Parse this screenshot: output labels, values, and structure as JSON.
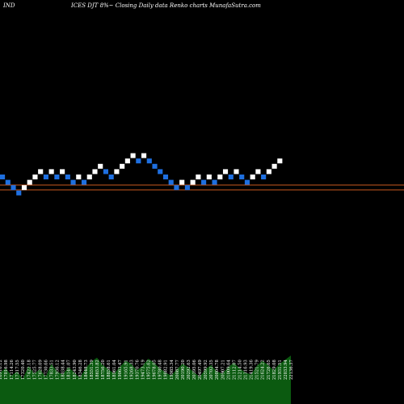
{
  "header": {
    "left": "IND",
    "center": "ICES DJT 8%~  Closing Daily data  Renko  charts MunafaSutra.com"
  },
  "chart_data": {
    "type": "renko",
    "title": "ICES DJT 8%~  Closing Daily data  Renko  charts MunafaSutra.com",
    "brick_size": 1,
    "colors": {
      "up": "#ffffff",
      "down": "#1e6fe0",
      "reference_line": "#c8581e",
      "volume": "#0b5a10",
      "background": "#000000"
    },
    "bricks": [
      {
        "dir": "down",
        "level": 0
      },
      {
        "dir": "down",
        "level": -1
      },
      {
        "dir": "down",
        "level": -2
      },
      {
        "dir": "down",
        "level": -3
      },
      {
        "dir": "up",
        "level": -2
      },
      {
        "dir": "up",
        "level": -1
      },
      {
        "dir": "up",
        "level": 0
      },
      {
        "dir": "up",
        "level": 1
      },
      {
        "dir": "down",
        "level": 0
      },
      {
        "dir": "up",
        "level": 1
      },
      {
        "dir": "down",
        "level": 0
      },
      {
        "dir": "up",
        "level": 1
      },
      {
        "dir": "down",
        "level": 0
      },
      {
        "dir": "down",
        "level": -1
      },
      {
        "dir": "up",
        "level": 0
      },
      {
        "dir": "down",
        "level": -1
      },
      {
        "dir": "up",
        "level": 0
      },
      {
        "dir": "up",
        "level": 1
      },
      {
        "dir": "up",
        "level": 2
      },
      {
        "dir": "down",
        "level": 1
      },
      {
        "dir": "down",
        "level": 0
      },
      {
        "dir": "up",
        "level": 1
      },
      {
        "dir": "up",
        "level": 2
      },
      {
        "dir": "up",
        "level": 3
      },
      {
        "dir": "up",
        "level": 4
      },
      {
        "dir": "down",
        "level": 3
      },
      {
        "dir": "up",
        "level": 4
      },
      {
        "dir": "down",
        "level": 3
      },
      {
        "dir": "down",
        "level": 2
      },
      {
        "dir": "down",
        "level": 1
      },
      {
        "dir": "down",
        "level": 0
      },
      {
        "dir": "down",
        "level": -1
      },
      {
        "dir": "down",
        "level": -2
      },
      {
        "dir": "up",
        "level": -1
      },
      {
        "dir": "down",
        "level": -2
      },
      {
        "dir": "up",
        "level": -1
      },
      {
        "dir": "up",
        "level": 0
      },
      {
        "dir": "down",
        "level": -1
      },
      {
        "dir": "up",
        "level": 0
      },
      {
        "dir": "down",
        "level": -1
      },
      {
        "dir": "up",
        "level": 0
      },
      {
        "dir": "up",
        "level": 1
      },
      {
        "dir": "down",
        "level": 0
      },
      {
        "dir": "up",
        "level": 1
      },
      {
        "dir": "down",
        "level": 0
      },
      {
        "dir": "down",
        "level": -1
      },
      {
        "dir": "up",
        "level": 0
      },
      {
        "dir": "up",
        "level": 1
      },
      {
        "dir": "down",
        "level": 0
      },
      {
        "dir": "up",
        "level": 1
      },
      {
        "dir": "up",
        "level": 2
      },
      {
        "dir": "up",
        "level": 3
      }
    ],
    "reference_lines": 2,
    "volume": [
      30,
      34,
      27,
      31,
      24,
      36,
      29,
      33,
      26,
      38,
      31,
      28,
      35,
      30,
      25,
      34,
      40,
      44,
      37,
      33,
      29,
      35,
      41,
      38,
      32,
      36,
      43,
      39,
      34,
      30,
      27,
      33,
      38,
      35,
      30,
      26,
      33,
      37,
      31,
      29,
      35,
      39,
      34,
      30,
      28,
      36,
      41,
      37,
      32,
      38,
      42,
      46
    ],
    "bar_labels": [
      "16916.12",
      "17016.98",
      "17114.26",
      "17217.55",
      "17320.40",
      "17422.18",
      "17525.77",
      "17628.09",
      "17730.66",
      "17833.51",
      "17936.12",
      "18038.44",
      "18141.07",
      "18243.90",
      "18346.28",
      "18448.73",
      "18551.39",
      "18653.82",
      "18756.20",
      "18858.61",
      "18961.04",
      "19063.47",
      "19165.91",
      "19268.33",
      "19370.76",
      "19473.19",
      "19575.62",
      "19678.05",
      "19780.48",
      "19882.91",
      "19985.34",
      "20087.77",
      "20190.20",
      "20292.63",
      "20395.06",
      "20497.49",
      "20599.92",
      "20702.35",
      "20804.78",
      "20907.21",
      "21009.64",
      "21112.07",
      "21214.50",
      "21316.93",
      "21419.36",
      "21521.79",
      "21624.22",
      "21726.65",
      "21829.08",
      "21931.51",
      "22033.94",
      "22136.37"
    ]
  }
}
